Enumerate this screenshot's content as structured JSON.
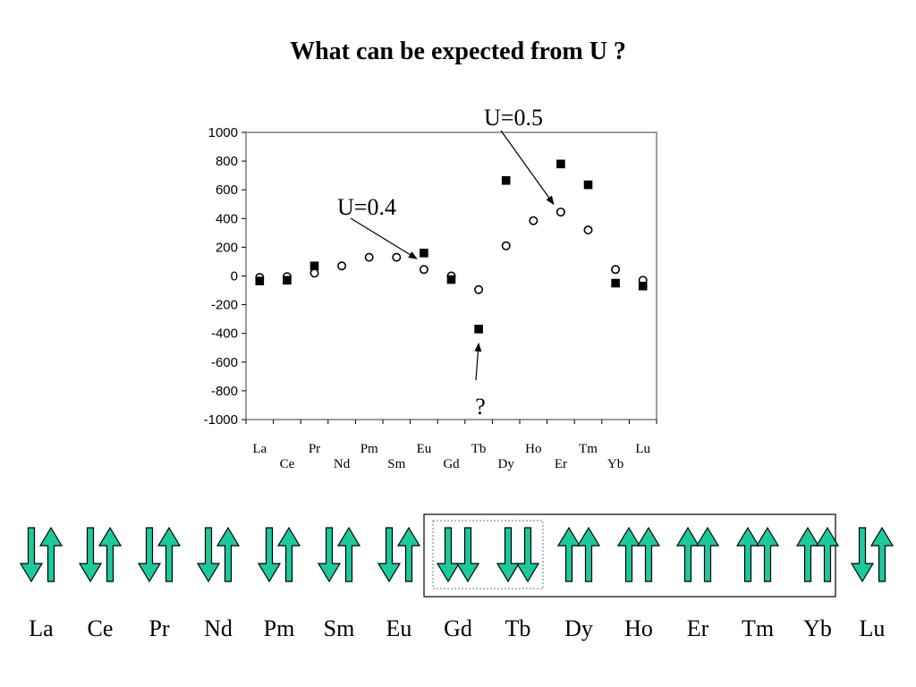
{
  "title": "What can be expected from U ?",
  "chart_data": {
    "type": "scatter",
    "categories": [
      "La",
      "Ce",
      "Pr",
      "Nd",
      "Pm",
      "Sm",
      "Eu",
      "Gd",
      "Tb",
      "Dy",
      "Ho",
      "Er",
      "Tm",
      "Yb",
      "Lu"
    ],
    "ylim": [
      -1000,
      1000
    ],
    "yticks": [
      1000,
      800,
      600,
      400,
      200,
      0,
      -200,
      -400,
      -600,
      -800,
      -1000
    ],
    "grid": false,
    "legend": "none",
    "series": [
      {
        "marker": "circle-open",
        "values": [
          -10,
          -5,
          20,
          70,
          130,
          130,
          45,
          0,
          -95,
          210,
          385,
          445,
          320,
          45,
          -30
        ]
      },
      {
        "marker": "square-filled",
        "values": [
          -35,
          -30,
          70,
          null,
          null,
          null,
          160,
          -25,
          -370,
          665,
          null,
          780,
          635,
          -50,
          -70
        ]
      }
    ],
    "annotations": [
      {
        "text": "U=0.4",
        "target_category": "Eu",
        "target_value": 120
      },
      {
        "text": "U=0.5",
        "target_category": "Er",
        "target_value": 500
      },
      {
        "text": "?",
        "target_category": "Tb",
        "target_value": -420
      }
    ]
  },
  "spin_diagram": {
    "elements": [
      "La",
      "Ce",
      "Pr",
      "Nd",
      "Pm",
      "Sm",
      "Eu",
      "Gd",
      "Tb",
      "Dy",
      "Ho",
      "Er",
      "Tm",
      "Yb",
      "Lu"
    ],
    "arrows": [
      [
        "down",
        "up"
      ],
      [
        "down",
        "up"
      ],
      [
        "down",
        "up"
      ],
      [
        "down",
        "up"
      ],
      [
        "down",
        "up"
      ],
      [
        "down",
        "up"
      ],
      [
        "down",
        "up"
      ],
      [
        "down",
        "down"
      ],
      [
        "down",
        "down"
      ],
      [
        "up",
        "up"
      ],
      [
        "up",
        "up"
      ],
      [
        "up",
        "up"
      ],
      [
        "up",
        "up"
      ],
      [
        "up",
        "up"
      ],
      [
        "down",
        "up"
      ]
    ],
    "boxed_range": [
      "Gd",
      "Yb"
    ],
    "dotted_range": [
      "Gd",
      "Tb"
    ],
    "arrow_color": "#1ec89b"
  }
}
